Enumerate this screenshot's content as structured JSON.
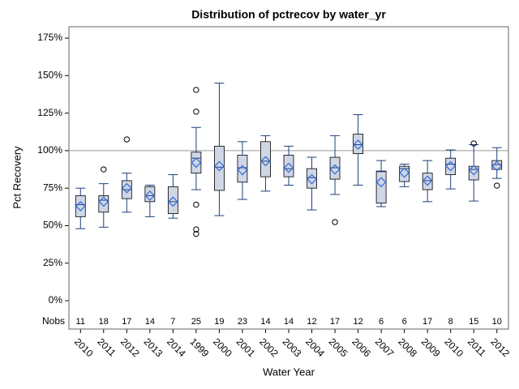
{
  "chart_data": {
    "type": "box",
    "title": "Distribution of pctrecov by water_yr",
    "x_label": "Water Year",
    "y_label": "Pct Recovery",
    "nobs_label": "Nobs",
    "categories": [
      "2010",
      "2011",
      "2012",
      "2013",
      "2014",
      "1999",
      "2000",
      "2001",
      "2002",
      "2003",
      "2004",
      "2005",
      "2006",
      "2007",
      "2008",
      "2009",
      "2010",
      "2011",
      "2012"
    ],
    "nobs": [
      11,
      18,
      17,
      14,
      7,
      25,
      19,
      23,
      14,
      14,
      12,
      17,
      12,
      6,
      6,
      17,
      8,
      15,
      10
    ],
    "boxes": [
      {
        "low": 48,
        "q1": 56,
        "median": 64,
        "q3": 70,
        "high": 75,
        "mean": 63,
        "outliers": []
      },
      {
        "low": 49,
        "q1": 59,
        "median": 67,
        "q3": 70,
        "high": 78,
        "mean": 66,
        "outliers": [
          87.5
        ]
      },
      {
        "low": 59,
        "q1": 68,
        "median": 74,
        "q3": 80,
        "high": 85,
        "mean": 75,
        "outliers": [
          107.5
        ]
      },
      {
        "low": 56,
        "q1": 66,
        "median": 70,
        "q3": 76,
        "high": 77,
        "mean": 70,
        "outliers": []
      },
      {
        "low": 55,
        "q1": 58,
        "median": 66,
        "q3": 76,
        "high": 84,
        "mean": 66,
        "outliers": []
      },
      {
        "low": 74,
        "q1": 85,
        "median": 95,
        "q3": 99,
        "high": 115.5,
        "mean": 92,
        "outliers": [
          140.5,
          126,
          64,
          47.5,
          44.5
        ]
      },
      {
        "low": 56.7,
        "q1": 73.5,
        "median": 89,
        "q3": 103,
        "high": 145,
        "mean": 89.7,
        "outliers": []
      },
      {
        "low": 67.5,
        "q1": 79,
        "median": 88.6,
        "q3": 97,
        "high": 106,
        "mean": 87,
        "outliers": []
      },
      {
        "low": 73,
        "q1": 82.6,
        "median": 93,
        "q3": 106,
        "high": 110,
        "mean": 93,
        "outliers": []
      },
      {
        "low": 77,
        "q1": 82.6,
        "median": 88,
        "q3": 97,
        "high": 103,
        "mean": 88.6,
        "outliers": []
      },
      {
        "low": 60.5,
        "q1": 75,
        "median": 82,
        "q3": 88,
        "high": 95.6,
        "mean": 81,
        "outliers": []
      },
      {
        "low": 70.8,
        "q1": 81,
        "median": 88.6,
        "q3": 95.6,
        "high": 110,
        "mean": 87.5,
        "outliers": [
          52.4
        ]
      },
      {
        "low": 77,
        "q1": 98,
        "median": 104,
        "q3": 111,
        "high": 124,
        "mean": 104,
        "outliers": []
      },
      {
        "low": 62.7,
        "q1": 65,
        "median": 86,
        "q3": 86.4,
        "high": 93.4,
        "mean": 79,
        "outliers": []
      },
      {
        "low": 76,
        "q1": 79.4,
        "median": 88,
        "q3": 89.6,
        "high": 91,
        "mean": 85.3,
        "outliers": []
      },
      {
        "low": 66,
        "q1": 74,
        "median": 80,
        "q3": 85,
        "high": 93.4,
        "mean": 80,
        "outliers": []
      },
      {
        "low": 74.5,
        "q1": 84,
        "median": 91,
        "q3": 95,
        "high": 100.5,
        "mean": 89.7,
        "outliers": []
      },
      {
        "low": 66.4,
        "q1": 80.5,
        "median": 87.5,
        "q3": 89.6,
        "high": 104,
        "mean": 87,
        "outliers": [
          104.8
        ]
      },
      {
        "low": 81.5,
        "q1": 87.5,
        "median": 90.7,
        "q3": 93.4,
        "high": 102,
        "mean": 89.7,
        "outliers": [
          76.7
        ]
      }
    ],
    "ylim": [
      -18.9,
      182.6
    ],
    "yticks": [
      {
        "value": 0,
        "label": "0%"
      },
      {
        "value": 25,
        "label": "25%"
      },
      {
        "value": 50,
        "label": "50%"
      },
      {
        "value": 75,
        "label": "75%"
      },
      {
        "value": 100,
        "label": "100%"
      },
      {
        "value": 125,
        "label": "125%"
      },
      {
        "value": 150,
        "label": "150%"
      },
      {
        "value": 175,
        "label": "175%"
      }
    ],
    "reference_line": 100,
    "box_color": "#cfd6e6",
    "line_color": "#1f3f7a",
    "mean_color": "#3a6fd8"
  }
}
